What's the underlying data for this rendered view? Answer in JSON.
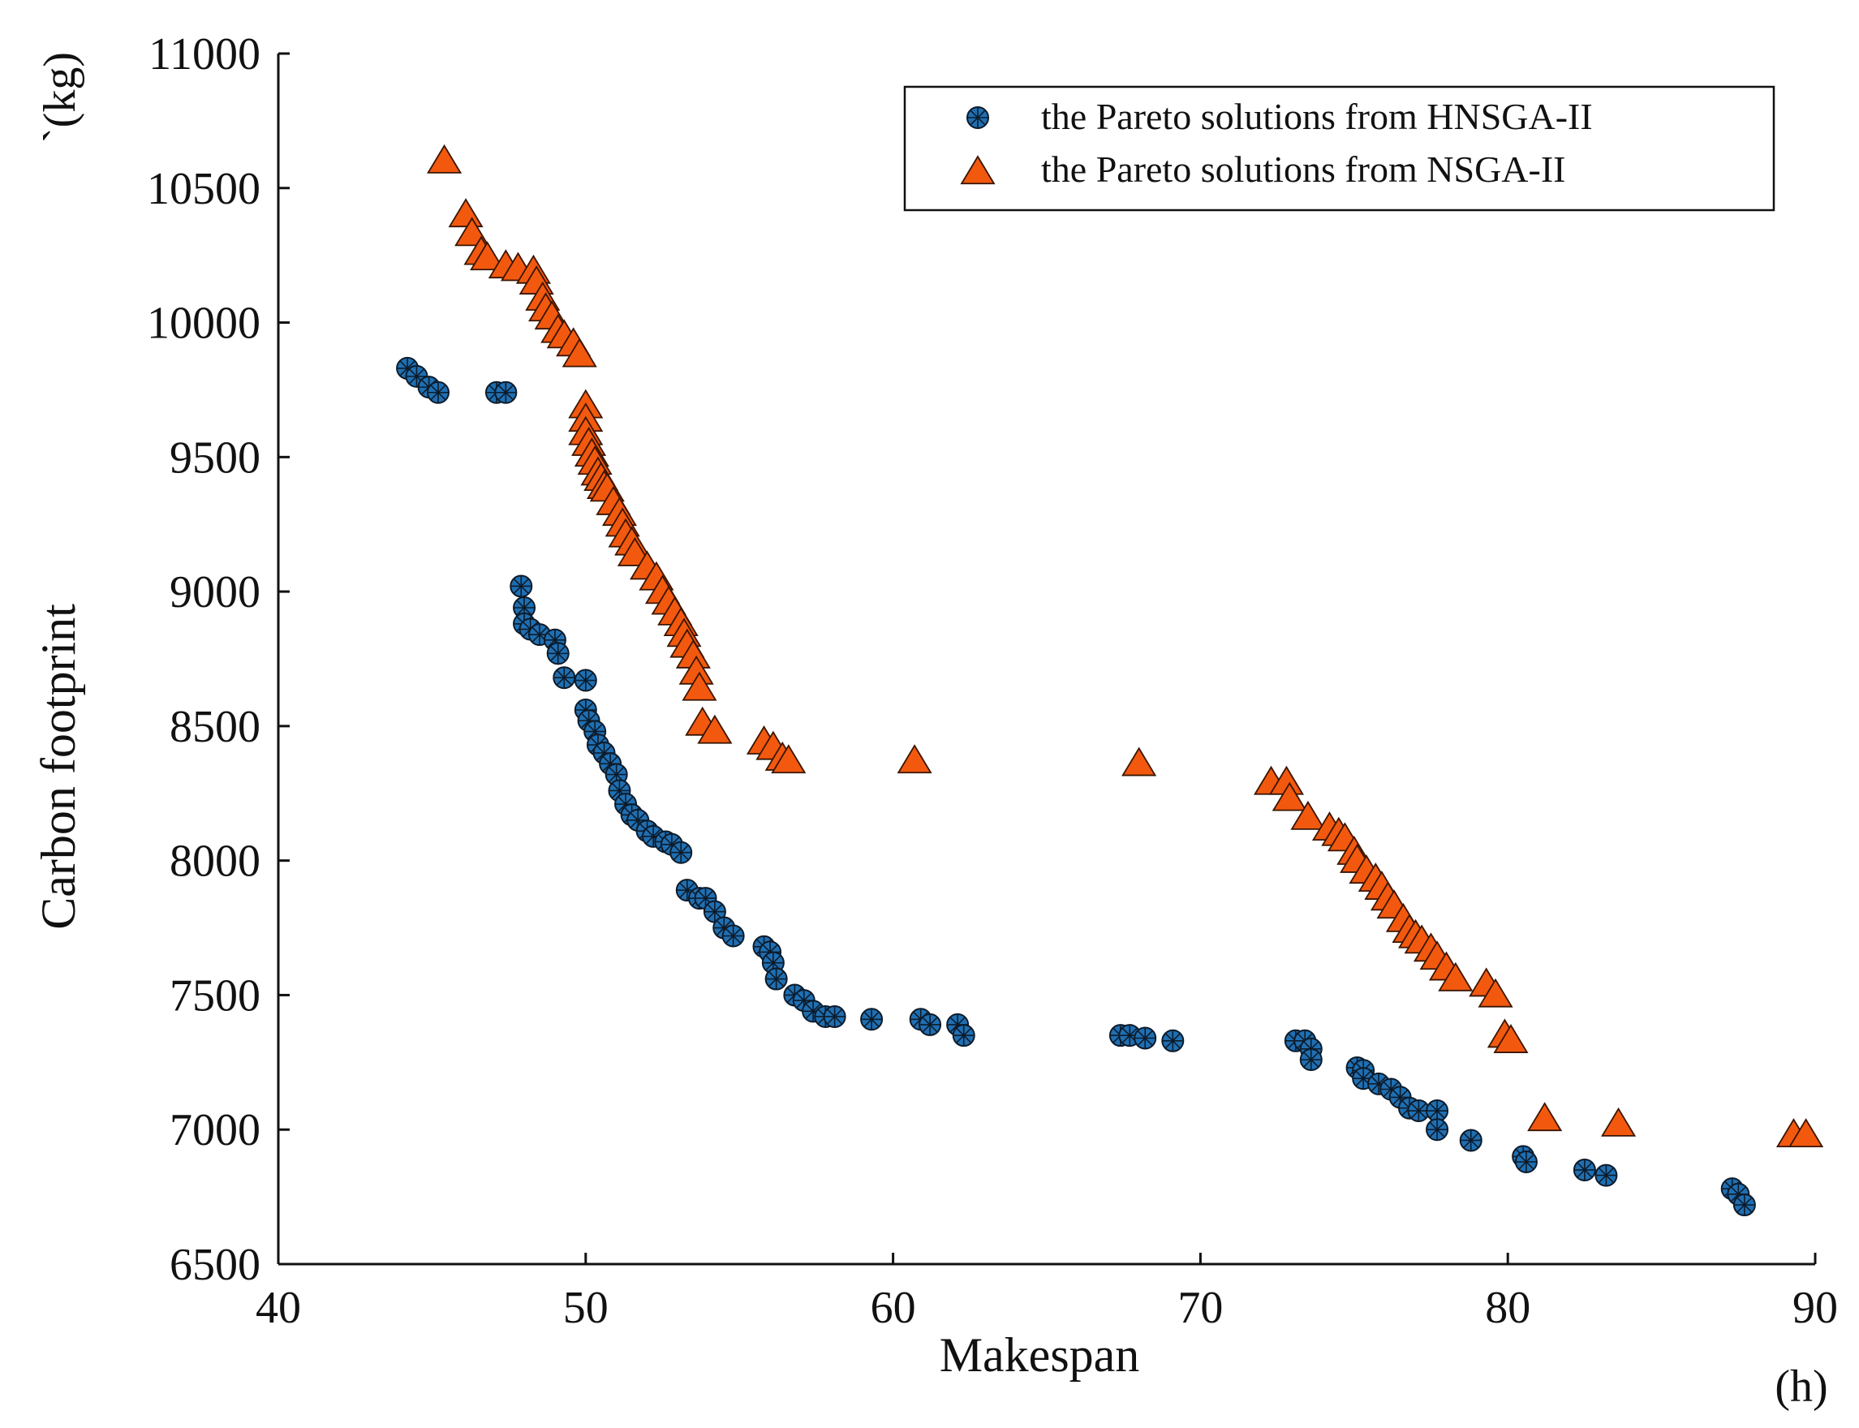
{
  "chart_data": {
    "type": "scatter",
    "title": "",
    "xlabel": "Makespan",
    "xunit": "(h)",
    "ylabel": "Carbon footprint",
    "yunit": "`(kg)",
    "xlim": [
      40,
      90
    ],
    "ylim": [
      6500,
      11000
    ],
    "xticks": [
      40,
      50,
      60,
      70,
      80,
      90
    ],
    "yticks": [
      6500,
      7000,
      7500,
      8000,
      8500,
      9000,
      9500,
      10000,
      10500,
      11000
    ],
    "grid": false,
    "legend_position": "top-right",
    "colors": {
      "hnsga": "#1f6fb2",
      "nsga": "#f2590f",
      "axis": "#111111"
    },
    "series": [
      {
        "name": "the Pareto solutions from HNSGA-II",
        "marker": "circle",
        "color": "#1f6fb2",
        "x": [
          44.2,
          44.5,
          44.9,
          45.2,
          47.1,
          47.4,
          47.9,
          48.0,
          48.0,
          48.2,
          48.5,
          49.0,
          49.1,
          49.3,
          50.0,
          50.0,
          50.1,
          50.3,
          50.4,
          50.6,
          50.8,
          51.0,
          51.1,
          51.3,
          51.5,
          51.7,
          52.0,
          52.2,
          52.6,
          52.8,
          53.1,
          53.3,
          53.7,
          53.9,
          54.2,
          54.5,
          54.8,
          55.8,
          56.0,
          56.1,
          56.2,
          56.8,
          57.1,
          57.4,
          57.8,
          58.1,
          59.3,
          60.9,
          61.2,
          62.1,
          62.3,
          67.4,
          67.7,
          68.2,
          69.1,
          73.1,
          73.4,
          73.6,
          73.6,
          75.1,
          75.3,
          75.3,
          75.8,
          76.2,
          76.5,
          76.8,
          77.1,
          77.7,
          77.7,
          78.8,
          80.5,
          80.6,
          82.5,
          83.2,
          87.3,
          87.5,
          87.7
        ],
        "y": [
          9830,
          9800,
          9760,
          9740,
          9740,
          9740,
          9020,
          8940,
          8880,
          8860,
          8840,
          8820,
          8770,
          8680,
          8670,
          8560,
          8520,
          8480,
          8430,
          8400,
          8360,
          8320,
          8260,
          8210,
          8170,
          8150,
          8110,
          8090,
          8070,
          8060,
          8030,
          7890,
          7860,
          7860,
          7810,
          7750,
          7720,
          7680,
          7660,
          7620,
          7560,
          7500,
          7480,
          7440,
          7420,
          7420,
          7410,
          7410,
          7390,
          7390,
          7350,
          7350,
          7350,
          7340,
          7330,
          7330,
          7330,
          7300,
          7260,
          7230,
          7220,
          7190,
          7170,
          7150,
          7120,
          7080,
          7070,
          7070,
          7000,
          6960,
          6900,
          6880,
          6850,
          6830,
          6780,
          6760,
          6720
        ]
      },
      {
        "name": "the Pareto solutions from NSGA-II",
        "marker": "triangle",
        "color": "#f2590f",
        "x": [
          45.4,
          46.1,
          46.3,
          46.6,
          46.8,
          47.4,
          47.8,
          48.3,
          48.4,
          48.6,
          48.7,
          48.9,
          49.1,
          49.3,
          49.6,
          49.8,
          50.0,
          50.0,
          50.0,
          50.1,
          50.2,
          50.3,
          50.4,
          50.5,
          50.6,
          50.7,
          50.9,
          51.1,
          51.2,
          51.3,
          51.5,
          51.6,
          52.0,
          52.3,
          52.5,
          52.7,
          52.9,
          53.1,
          53.2,
          53.3,
          53.5,
          53.6,
          53.7,
          53.8,
          54.2,
          55.8,
          56.1,
          56.4,
          56.6,
          60.7,
          68.0,
          72.3,
          72.8,
          72.9,
          73.5,
          74.2,
          74.5,
          74.7,
          75.0,
          75.1,
          75.4,
          75.7,
          75.9,
          76.1,
          76.3,
          76.6,
          76.8,
          77.0,
          77.2,
          77.5,
          77.7,
          78.0,
          78.3,
          79.3,
          79.6,
          79.9,
          80.1,
          81.2,
          83.6,
          89.3,
          89.7
        ],
        "y": [
          10600,
          10400,
          10330,
          10260,
          10240,
          10210,
          10200,
          10190,
          10150,
          10090,
          10050,
          10020,
          9970,
          9950,
          9920,
          9880,
          9690,
          9640,
          9590,
          9550,
          9510,
          9480,
          9440,
          9420,
          9390,
          9380,
          9330,
          9290,
          9250,
          9210,
          9180,
          9140,
          9090,
          9050,
          9000,
          8960,
          8920,
          8880,
          8840,
          8800,
          8760,
          8700,
          8640,
          8510,
          8480,
          8440,
          8420,
          8380,
          8370,
          8370,
          8360,
          8290,
          8290,
          8230,
          8160,
          8120,
          8100,
          8080,
          8030,
          8000,
          7960,
          7930,
          7900,
          7860,
          7830,
          7780,
          7740,
          7720,
          7700,
          7670,
          7640,
          7600,
          7560,
          7540,
          7500,
          7350,
          7330,
          7040,
          7020,
          6980,
          6980
        ]
      }
    ]
  }
}
